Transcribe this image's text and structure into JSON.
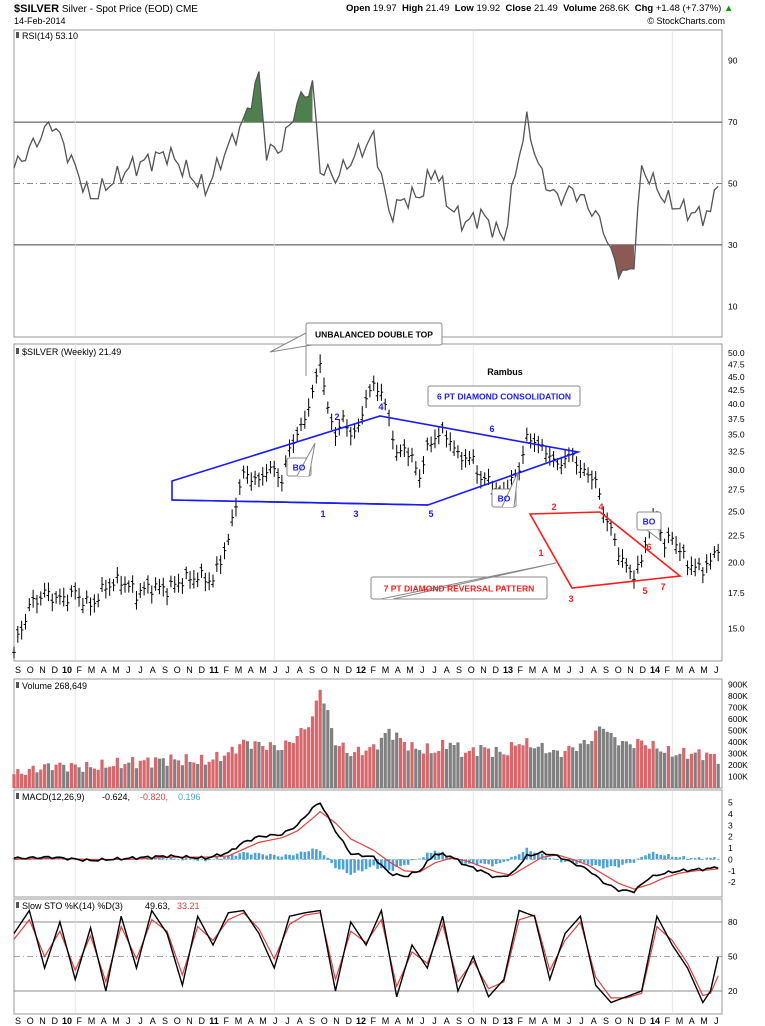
{
  "header": {
    "symbol": "$SILVER",
    "name": "Silver - Spot Price (EOD)",
    "exchange": "CME",
    "date": "14-Feb-2014",
    "open_label": "Open",
    "open": "19.97",
    "high_label": "High",
    "high": "21.49",
    "low_label": "Low",
    "low": "19.92",
    "close_label": "Close",
    "close": "21.49",
    "vol_label": "Volume",
    "volume": "268.6K",
    "chg_label": "Chg",
    "chg": "+1.48 (+7.37%)",
    "logo": "© StockCharts.com",
    "up_icon": "triangle-up-icon"
  },
  "colors": {
    "price_bar": "#000000",
    "blue": "#1a1aff",
    "red": "#ff1a1a",
    "rsi_line": "#555555",
    "rsi_over": "#4f7f4f",
    "rsi_under": "#8b5a55",
    "vol_up": "#d9666a",
    "vol_down": "#808080",
    "macd_hist": "#4aa3d8",
    "signal": "#e04040"
  },
  "x_axis": {
    "labels": [
      "S",
      "O",
      "N",
      "D",
      "10",
      "F",
      "M",
      "A",
      "M",
      "J",
      "J",
      "A",
      "S",
      "O",
      "N",
      "D",
      "11",
      "F",
      "M",
      "A",
      "M",
      "J",
      "J",
      "A",
      "S",
      "O",
      "N",
      "D",
      "12",
      "F",
      "M",
      "A",
      "M",
      "J",
      "J",
      "A",
      "S",
      "O",
      "N",
      "D",
      "13",
      "F",
      "M",
      "A",
      "M",
      "J",
      "J",
      "A",
      "S",
      "O",
      "N",
      "D",
      "14",
      "F",
      "M",
      "A",
      "M",
      "J"
    ],
    "year_labels": [
      "10",
      "11",
      "12",
      "13",
      "14"
    ]
  },
  "rsi_panel": {
    "label": "RSI(14) 53.10",
    "ticks": [
      "90",
      "70",
      "50",
      "30",
      "10"
    ]
  },
  "price_panel": {
    "label": "$SILVER (Weekly) 21.49",
    "ticks": [
      "50.0",
      "47.5",
      "45.0",
      "42.5",
      "40.0",
      "37.5",
      "35.0",
      "32.5",
      "30.0",
      "27.5",
      "25.0",
      "22.5",
      "20.0",
      "17.5",
      "15.0"
    ],
    "rambus": "Rambus",
    "callout_double_top": "UNBALANCED DOUBLE TOP",
    "callout_6pt": "6 PT DIAMOND CONSOLIDATION",
    "callout_7pt": "7 PT DIAMOND REVERSAL PATTERN",
    "bo1": "BO",
    "bo2": "BO",
    "bo3": "BO",
    "blue_points": [
      "1",
      "2",
      "3",
      "4",
      "5",
      "6"
    ],
    "red_points": [
      "1",
      "2",
      "3",
      "4",
      "5",
      "6",
      "7"
    ]
  },
  "volume_panel": {
    "label": "Volume 268,649",
    "ticks": [
      "900K",
      "800K",
      "700K",
      "600K",
      "500K",
      "400K",
      "300K",
      "200K",
      "100K"
    ]
  },
  "macd_panel": {
    "label": "MACD(12,26,9)",
    "v1": "-0.624,",
    "v2": "-0.820,",
    "v3": "0.196",
    "ticks": [
      "5",
      "4",
      "3",
      "2",
      "1",
      "0",
      "-1",
      "-2"
    ]
  },
  "sto_panel": {
    "label": "Slow STO %K(14) %D(3)",
    "k": "49.63,",
    "d": "33.21",
    "ticks": [
      "80",
      "50",
      "20"
    ]
  },
  "chart_data": {
    "type": "line",
    "title": "$SILVER Silver - Spot Price (EOD) CME",
    "x_range": [
      "2009-09",
      "2014-06"
    ],
    "price_weekly_close": [
      [
        0,
        13.5
      ],
      [
        4,
        16.5
      ],
      [
        8,
        17.5
      ],
      [
        12,
        17.0
      ],
      [
        16,
        17.5
      ],
      [
        20,
        16.5
      ],
      [
        24,
        18.0
      ],
      [
        28,
        18.5
      ],
      [
        32,
        17.5
      ],
      [
        36,
        18.0
      ],
      [
        40,
        17.8
      ],
      [
        44,
        18.5
      ],
      [
        48,
        18.8
      ],
      [
        52,
        18.5
      ],
      [
        56,
        22.0
      ],
      [
        58,
        26.0
      ],
      [
        60,
        29.5
      ],
      [
        62,
        29.0
      ],
      [
        64,
        28.5
      ],
      [
        66,
        30.0
      ],
      [
        68,
        30.0
      ],
      [
        70,
        28.5
      ],
      [
        72,
        33.0
      ],
      [
        74,
        35.0
      ],
      [
        76,
        37.5
      ],
      [
        78,
        42.0
      ],
      [
        80,
        48.0
      ],
      [
        82,
        39.0
      ],
      [
        84,
        35.0
      ],
      [
        86,
        37.5
      ],
      [
        88,
        35.0
      ],
      [
        90,
        36.0
      ],
      [
        92,
        41.0
      ],
      [
        94,
        43.5
      ],
      [
        96,
        42.0
      ],
      [
        98,
        37.5
      ],
      [
        100,
        32.0
      ],
      [
        102,
        33.0
      ],
      [
        104,
        31.5
      ],
      [
        106,
        29.0
      ],
      [
        108,
        33.0
      ],
      [
        110,
        34.5
      ],
      [
        112,
        35.5
      ],
      [
        114,
        34.0
      ],
      [
        116,
        32.0
      ],
      [
        118,
        31.5
      ],
      [
        120,
        31.5
      ],
      [
        122,
        28.5
      ],
      [
        124,
        29.0
      ],
      [
        126,
        27.0
      ],
      [
        128,
        27.5
      ],
      [
        130,
        28.5
      ],
      [
        132,
        30.0
      ],
      [
        134,
        34.5
      ],
      [
        136,
        34.0
      ],
      [
        138,
        33.0
      ],
      [
        140,
        32.0
      ],
      [
        142,
        30.5
      ],
      [
        144,
        31.5
      ],
      [
        146,
        32.0
      ],
      [
        148,
        30.0
      ],
      [
        150,
        29.5
      ],
      [
        152,
        28.5
      ],
      [
        154,
        25.0
      ],
      [
        156,
        23.0
      ],
      [
        158,
        21.0
      ],
      [
        160,
        19.5
      ],
      [
        162,
        19.0
      ],
      [
        164,
        20.0
      ],
      [
        166,
        23.5
      ],
      [
        168,
        24.5
      ],
      [
        170,
        21.5
      ],
      [
        172,
        22.5
      ],
      [
        174,
        21.0
      ],
      [
        176,
        20.0
      ],
      [
        178,
        19.5
      ],
      [
        180,
        19.5
      ],
      [
        182,
        20.0
      ],
      [
        184,
        21.49
      ]
    ],
    "rsi": [
      [
        0,
        55
      ],
      [
        10,
        70
      ],
      [
        20,
        45
      ],
      [
        30,
        55
      ],
      [
        40,
        60
      ],
      [
        50,
        48
      ],
      [
        56,
        62
      ],
      [
        60,
        70
      ],
      [
        64,
        85
      ],
      [
        66,
        60
      ],
      [
        70,
        62
      ],
      [
        74,
        76
      ],
      [
        78,
        82
      ],
      [
        80,
        55
      ],
      [
        84,
        52
      ],
      [
        90,
        60
      ],
      [
        94,
        65
      ],
      [
        98,
        40
      ],
      [
        102,
        45
      ],
      [
        106,
        46
      ],
      [
        110,
        55
      ],
      [
        114,
        42
      ],
      [
        118,
        37
      ],
      [
        122,
        40
      ],
      [
        128,
        32
      ],
      [
        132,
        60
      ],
      [
        134,
        70
      ],
      [
        138,
        52
      ],
      [
        142,
        45
      ],
      [
        146,
        48
      ],
      [
        150,
        43
      ],
      [
        154,
        36
      ],
      [
        156,
        27
      ],
      [
        158,
        22
      ],
      [
        160,
        20
      ],
      [
        162,
        25
      ],
      [
        164,
        55
      ],
      [
        166,
        52
      ],
      [
        170,
        45
      ],
      [
        174,
        42
      ],
      [
        178,
        40
      ],
      [
        182,
        40
      ],
      [
        184,
        53
      ]
    ],
    "volume_k": [
      [
        0,
        120
      ],
      [
        10,
        200
      ],
      [
        20,
        180
      ],
      [
        30,
        220
      ],
      [
        40,
        250
      ],
      [
        50,
        230
      ],
      [
        56,
        300
      ],
      [
        60,
        400
      ],
      [
        64,
        380
      ],
      [
        70,
        350
      ],
      [
        74,
        450
      ],
      [
        78,
        600
      ],
      [
        80,
        880
      ],
      [
        84,
        400
      ],
      [
        88,
        300
      ],
      [
        94,
        350
      ],
      [
        98,
        500
      ],
      [
        104,
        350
      ],
      [
        110,
        320
      ],
      [
        114,
        400
      ],
      [
        118,
        300
      ],
      [
        122,
        350
      ],
      [
        128,
        300
      ],
      [
        132,
        400
      ],
      [
        138,
        350
      ],
      [
        142,
        300
      ],
      [
        146,
        350
      ],
      [
        150,
        400
      ],
      [
        154,
        550
      ],
      [
        156,
        450
      ],
      [
        160,
        380
      ],
      [
        164,
        400
      ],
      [
        168,
        350
      ],
      [
        172,
        300
      ],
      [
        176,
        300
      ],
      [
        180,
        300
      ],
      [
        184,
        269
      ]
    ],
    "macd": [
      [
        0,
        0.1
      ],
      [
        10,
        0.2
      ],
      [
        20,
        -0.1
      ],
      [
        30,
        0.1
      ],
      [
        40,
        0.3
      ],
      [
        50,
        0.1
      ],
      [
        56,
        0.6
      ],
      [
        60,
        1.5
      ],
      [
        64,
        2.0
      ],
      [
        70,
        2.2
      ],
      [
        74,
        3.0
      ],
      [
        78,
        4.5
      ],
      [
        80,
        5.0
      ],
      [
        84,
        2.5
      ],
      [
        88,
        0.5
      ],
      [
        94,
        0.2
      ],
      [
        98,
        -1.2
      ],
      [
        102,
        -1.5
      ],
      [
        106,
        -1.0
      ],
      [
        110,
        0.5
      ],
      [
        114,
        0.3
      ],
      [
        118,
        -0.5
      ],
      [
        122,
        -1.0
      ],
      [
        126,
        -1.6
      ],
      [
        130,
        -1.3
      ],
      [
        134,
        0.3
      ],
      [
        138,
        0.6
      ],
      [
        142,
        0.3
      ],
      [
        146,
        -0.3
      ],
      [
        150,
        -0.9
      ],
      [
        154,
        -2.0
      ],
      [
        158,
        -2.7
      ],
      [
        162,
        -2.8
      ],
      [
        166,
        -1.6
      ],
      [
        170,
        -1.2
      ],
      [
        174,
        -1.0
      ],
      [
        178,
        -0.9
      ],
      [
        182,
        -0.8
      ],
      [
        184,
        -0.624
      ]
    ],
    "macd_signal": [
      [
        0,
        0.0
      ],
      [
        10,
        0.1
      ],
      [
        20,
        0.0
      ],
      [
        30,
        0.0
      ],
      [
        40,
        0.2
      ],
      [
        50,
        0.2
      ],
      [
        56,
        0.3
      ],
      [
        60,
        0.9
      ],
      [
        64,
        1.5
      ],
      [
        70,
        1.9
      ],
      [
        74,
        2.5
      ],
      [
        78,
        3.6
      ],
      [
        80,
        4.2
      ],
      [
        84,
        3.2
      ],
      [
        88,
        1.8
      ],
      [
        94,
        0.8
      ],
      [
        98,
        -0.2
      ],
      [
        102,
        -1.0
      ],
      [
        106,
        -1.1
      ],
      [
        110,
        -0.3
      ],
      [
        114,
        0.1
      ],
      [
        118,
        -0.1
      ],
      [
        122,
        -0.6
      ],
      [
        126,
        -1.1
      ],
      [
        130,
        -1.4
      ],
      [
        134,
        -0.6
      ],
      [
        138,
        0.2
      ],
      [
        142,
        0.4
      ],
      [
        146,
        0.0
      ],
      [
        150,
        -0.5
      ],
      [
        154,
        -1.3
      ],
      [
        158,
        -2.1
      ],
      [
        162,
        -2.6
      ],
      [
        166,
        -2.2
      ],
      [
        170,
        -1.6
      ],
      [
        174,
        -1.2
      ],
      [
        178,
        -1.0
      ],
      [
        182,
        -0.9
      ],
      [
        184,
        -0.82
      ]
    ],
    "sto_k": [
      [
        0,
        70
      ],
      [
        4,
        90
      ],
      [
        8,
        40
      ],
      [
        12,
        80
      ],
      [
        16,
        30
      ],
      [
        20,
        75
      ],
      [
        24,
        20
      ],
      [
        28,
        85
      ],
      [
        32,
        40
      ],
      [
        36,
        90
      ],
      [
        40,
        70
      ],
      [
        44,
        25
      ],
      [
        48,
        85
      ],
      [
        52,
        60
      ],
      [
        56,
        88
      ],
      [
        60,
        90
      ],
      [
        64,
        70
      ],
      [
        68,
        40
      ],
      [
        72,
        85
      ],
      [
        76,
        88
      ],
      [
        80,
        90
      ],
      [
        84,
        20
      ],
      [
        88,
        80
      ],
      [
        92,
        60
      ],
      [
        96,
        90
      ],
      [
        100,
        15
      ],
      [
        104,
        60
      ],
      [
        108,
        40
      ],
      [
        112,
        85
      ],
      [
        116,
        20
      ],
      [
        120,
        50
      ],
      [
        124,
        15
      ],
      [
        128,
        30
      ],
      [
        132,
        90
      ],
      [
        136,
        85
      ],
      [
        140,
        30
      ],
      [
        144,
        70
      ],
      [
        148,
        85
      ],
      [
        152,
        25
      ],
      [
        156,
        10
      ],
      [
        160,
        15
      ],
      [
        164,
        20
      ],
      [
        168,
        85
      ],
      [
        172,
        60
      ],
      [
        176,
        40
      ],
      [
        180,
        10
      ],
      [
        182,
        20
      ],
      [
        184,
        49.63
      ]
    ],
    "sto_d": [
      [
        0,
        65
      ],
      [
        4,
        82
      ],
      [
        8,
        50
      ],
      [
        12,
        72
      ],
      [
        16,
        38
      ],
      [
        20,
        68
      ],
      [
        24,
        28
      ],
      [
        28,
        76
      ],
      [
        32,
        48
      ],
      [
        36,
        82
      ],
      [
        40,
        72
      ],
      [
        44,
        34
      ],
      [
        48,
        76
      ],
      [
        52,
        64
      ],
      [
        56,
        82
      ],
      [
        60,
        88
      ],
      [
        64,
        74
      ],
      [
        68,
        48
      ],
      [
        72,
        78
      ],
      [
        76,
        86
      ],
      [
        80,
        88
      ],
      [
        84,
        30
      ],
      [
        88,
        72
      ],
      [
        92,
        62
      ],
      [
        96,
        82
      ],
      [
        100,
        24
      ],
      [
        104,
        54
      ],
      [
        108,
        44
      ],
      [
        112,
        78
      ],
      [
        116,
        28
      ],
      [
        120,
        46
      ],
      [
        124,
        22
      ],
      [
        128,
        28
      ],
      [
        132,
        82
      ],
      [
        136,
        86
      ],
      [
        140,
        38
      ],
      [
        144,
        64
      ],
      [
        148,
        80
      ],
      [
        152,
        32
      ],
      [
        156,
        14
      ],
      [
        160,
        14
      ],
      [
        164,
        18
      ],
      [
        168,
        76
      ],
      [
        172,
        64
      ],
      [
        176,
        44
      ],
      [
        180,
        16
      ],
      [
        182,
        18
      ],
      [
        184,
        33.21
      ]
    ],
    "diamond_6pt": {
      "points": [
        "1",
        "2",
        "3",
        "4",
        "5",
        "6"
      ],
      "color": "blue"
    },
    "diamond_7pt": {
      "points": [
        "1",
        "2",
        "3",
        "4",
        "5",
        "6",
        "7"
      ],
      "color": "red"
    }
  }
}
